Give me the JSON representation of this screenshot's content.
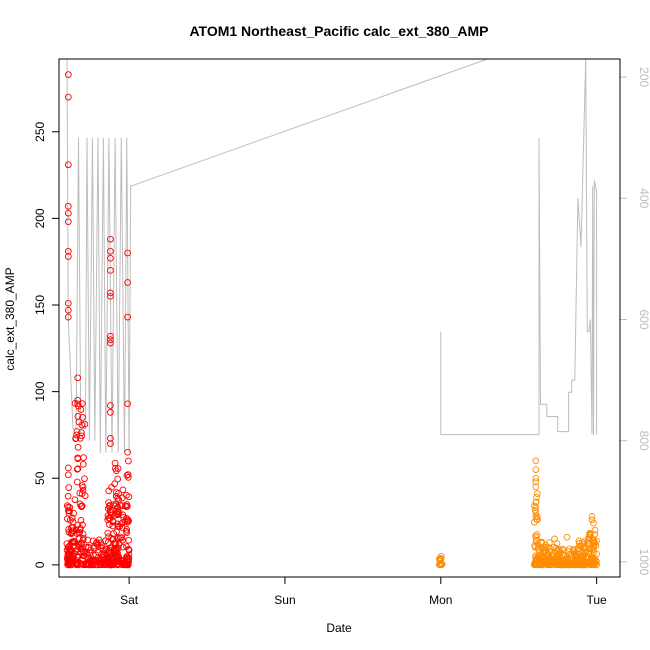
{
  "chart_data": {
    "type": "scatter",
    "title": "ATOM1 Northeast_Pacific calc_ext_380_AMP",
    "xlabel": "Date",
    "ylabel": "calc_ext_380_AMP",
    "x_unit": "days",
    "xlim": [
      -0.45,
      3.15
    ],
    "ylim": [
      -7,
      292
    ],
    "x_ticks": [
      {
        "at": 0,
        "label": "Sat"
      },
      {
        "at": 1,
        "label": "Sun"
      },
      {
        "at": 2,
        "label": "Mon"
      },
      {
        "at": 3,
        "label": "Tue"
      }
    ],
    "y_ticks": [
      0,
      50,
      100,
      150,
      200,
      250
    ],
    "y2_ticks": [
      200,
      400,
      600,
      800,
      1000
    ],
    "y2lim": [
      1025,
      170
    ],
    "colors": {
      "series_red": "#ff0000",
      "series_orange": "#ff8c00",
      "depth_line": "#bdbdbd"
    },
    "series": [
      {
        "color": "#ff0000",
        "x_range": [
          -0.4,
          0.0
        ],
        "clusters": [
          {
            "x0": -0.4,
            "x1": -0.38,
            "ymax": 45,
            "n": 40
          },
          {
            "x0": -0.38,
            "x1": -0.35,
            "ymax": 30,
            "n": 35
          },
          {
            "x0": -0.35,
            "x1": -0.28,
            "ymax": 95,
            "n": 80
          },
          {
            "x0": -0.28,
            "x1": -0.14,
            "ymax": 15,
            "n": 80
          },
          {
            "x0": -0.14,
            "x1": -0.11,
            "ymax": 45,
            "n": 50
          },
          {
            "x0": -0.11,
            "x1": -0.07,
            "ymax": 60,
            "n": 60
          },
          {
            "x0": -0.07,
            "x1": -0.02,
            "ymax": 50,
            "n": 40
          },
          {
            "x0": -0.02,
            "x1": 0.0,
            "ymax": 66,
            "n": 40
          }
        ],
        "points": [
          [
            -0.39,
            283
          ],
          [
            -0.39,
            270
          ],
          [
            -0.39,
            231
          ],
          [
            -0.39,
            207
          ],
          [
            -0.39,
            203
          ],
          [
            -0.39,
            198
          ],
          [
            -0.39,
            181
          ],
          [
            -0.39,
            178
          ],
          [
            -0.39,
            151
          ],
          [
            -0.39,
            147
          ],
          [
            -0.39,
            143
          ],
          [
            -0.39,
            56
          ],
          [
            -0.39,
            52
          ],
          [
            -0.33,
            108
          ],
          [
            -0.33,
            95
          ],
          [
            -0.33,
            93
          ],
          [
            -0.12,
            188
          ],
          [
            -0.12,
            181
          ],
          [
            -0.12,
            177
          ],
          [
            -0.12,
            170
          ],
          [
            -0.12,
            157
          ],
          [
            -0.12,
            155
          ],
          [
            -0.12,
            132
          ],
          [
            -0.12,
            130
          ],
          [
            -0.12,
            128
          ],
          [
            -0.12,
            92
          ],
          [
            -0.12,
            88
          ],
          [
            -0.12,
            73
          ],
          [
            -0.12,
            70
          ],
          [
            -0.01,
            180
          ],
          [
            -0.01,
            163
          ],
          [
            -0.01,
            143
          ],
          [
            -0.01,
            93
          ],
          [
            -0.01,
            65
          ]
        ]
      },
      {
        "color": "#ff8c00",
        "x_range": [
          2.0,
          3.0
        ],
        "clusters": [
          {
            "x0": 1.99,
            "x1": 2.01,
            "ymax": 6,
            "n": 12
          },
          {
            "x0": 2.6,
            "x1": 2.62,
            "ymax": 45,
            "n": 30
          },
          {
            "x0": 2.62,
            "x1": 2.75,
            "ymax": 14,
            "n": 90
          },
          {
            "x0": 2.75,
            "x1": 2.87,
            "ymax": 10,
            "n": 80
          },
          {
            "x0": 2.87,
            "x1": 2.93,
            "ymax": 14,
            "n": 60
          },
          {
            "x0": 2.93,
            "x1": 3.0,
            "ymax": 22,
            "n": 60
          }
        ],
        "points": [
          [
            2.61,
            60
          ],
          [
            2.61,
            55
          ],
          [
            2.61,
            50
          ],
          [
            2.61,
            48
          ],
          [
            2.61,
            45
          ],
          [
            2.61,
            36
          ],
          [
            2.61,
            33
          ],
          [
            2.61,
            30
          ],
          [
            2.61,
            28
          ],
          [
            2.97,
            28
          ],
          [
            2.97,
            26
          ],
          [
            2.98,
            24
          ],
          [
            2.99,
            20
          ],
          [
            2.96,
            17
          ],
          [
            2.81,
            16
          ],
          [
            2.73,
            15
          ]
        ]
      }
    ],
    "depth_profile": {
      "color": "#bdbdbd",
      "axis": "right",
      "points": [
        [
          -0.4,
          100
        ],
        [
          -0.39,
          600
        ],
        [
          -0.36,
          780
        ],
        [
          -0.34,
          780
        ],
        [
          -0.325,
          300
        ],
        [
          -0.31,
          780
        ],
        [
          -0.28,
          780
        ],
        [
          -0.27,
          300
        ],
        [
          -0.255,
          800
        ],
        [
          -0.235,
          300
        ],
        [
          -0.22,
          800
        ],
        [
          -0.2,
          300
        ],
        [
          -0.185,
          820
        ],
        [
          -0.165,
          300
        ],
        [
          -0.15,
          820
        ],
        [
          -0.13,
          300
        ],
        [
          -0.11,
          820
        ],
        [
          -0.09,
          300
        ],
        [
          -0.07,
          820
        ],
        [
          -0.05,
          300
        ],
        [
          -0.03,
          820
        ],
        [
          -0.015,
          300
        ],
        [
          0.0,
          820
        ],
        [
          0.01,
          380
        ],
        [
          2.3,
          170
        ]
      ],
      "points2": [
        [
          2.0,
          620
        ],
        [
          2.0,
          790
        ],
        [
          2.63,
          790
        ],
        [
          2.63,
          300
        ],
        [
          2.64,
          740
        ],
        [
          2.68,
          740
        ],
        [
          2.68,
          760
        ],
        [
          2.75,
          760
        ],
        [
          2.75,
          785
        ],
        [
          2.82,
          785
        ],
        [
          2.82,
          720
        ],
        [
          2.84,
          720
        ],
        [
          2.84,
          700
        ],
        [
          2.86,
          700
        ],
        [
          2.88,
          400
        ],
        [
          2.9,
          480
        ],
        [
          2.93,
          170
        ],
        [
          2.94,
          620
        ],
        [
          2.95,
          620
        ],
        [
          2.96,
          600
        ],
        [
          2.97,
          790
        ],
        [
          2.975,
          380
        ],
        [
          2.98,
          790
        ],
        [
          2.985,
          370
        ],
        [
          3.0,
          390
        ],
        [
          3.0,
          790
        ]
      ]
    }
  }
}
